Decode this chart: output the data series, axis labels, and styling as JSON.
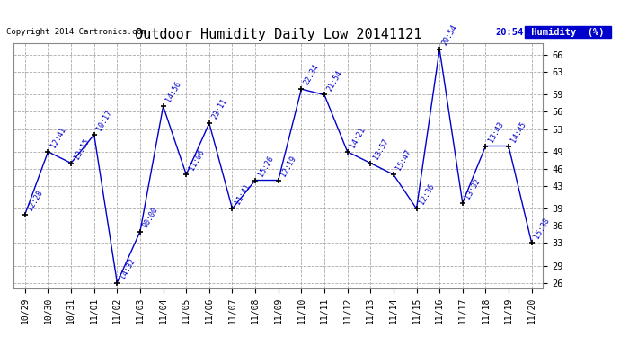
{
  "title": "Outdoor Humidity Daily Low 20141121",
  "copyright": "Copyright 2014 Cartronics.com",
  "legend_label": "Humidity  (%)",
  "background_color": "#ffffff",
  "plot_bg_color": "#ffffff",
  "line_color": "#0000cc",
  "text_color": "#0000cc",
  "legend_bg": "#0000cc",
  "x_labels": [
    "10/29",
    "10/30",
    "10/31",
    "11/01",
    "11/02",
    "11/03",
    "11/04",
    "11/05",
    "11/06",
    "11/07",
    "11/08",
    "11/09",
    "11/10",
    "11/11",
    "11/12",
    "11/13",
    "11/14",
    "11/15",
    "11/16",
    "11/17",
    "11/18",
    "11/19",
    "11/20"
  ],
  "y_values": [
    38,
    49,
    47,
    52,
    26,
    35,
    57,
    45,
    54,
    39,
    44,
    44,
    60,
    59,
    49,
    47,
    45,
    39,
    67,
    40,
    50,
    50,
    33
  ],
  "point_labels": [
    "12:28",
    "12:41",
    "13:15",
    "10:17",
    "14:32",
    "00:00",
    "14:56",
    "11:06",
    "23:11",
    "11:41",
    "15:26",
    "12:19",
    "22:34",
    "21:54",
    "14:21",
    "13:57",
    "15:47",
    "12:36",
    "20:54",
    "13:32",
    "13:43",
    "14:45",
    "15:38"
  ],
  "ylim_min": 25,
  "ylim_max": 68,
  "yticks": [
    26,
    29,
    33,
    36,
    39,
    43,
    46,
    49,
    53,
    56,
    59,
    63,
    66
  ],
  "grid_color": "#aaaaaa"
}
